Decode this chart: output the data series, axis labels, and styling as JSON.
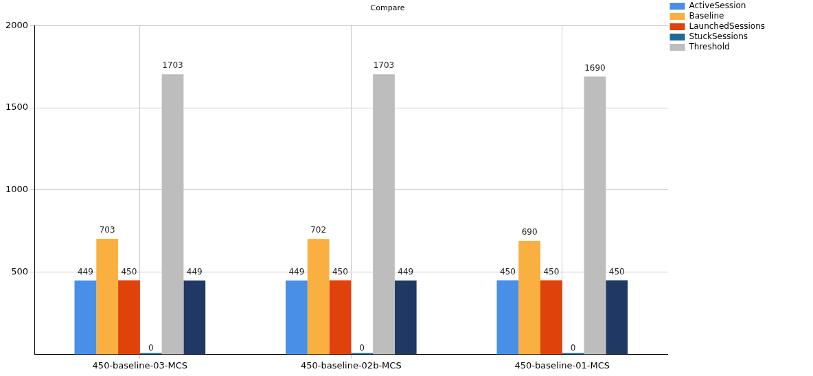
{
  "chart_data": {
    "type": "bar",
    "title": "Compare",
    "categories": [
      "450-baseline-03-MCS",
      "450-baseline-02b-MCS",
      "450-baseline-01-MCS"
    ],
    "series": [
      {
        "name": "ActiveSession",
        "color": "#4a8fe7",
        "values": [
          449,
          449,
          450
        ]
      },
      {
        "name": "Baseline",
        "color": "#f9b041",
        "values": [
          703,
          702,
          690
        ]
      },
      {
        "name": "LaunchedSessions",
        "color": "#e0420c",
        "values": [
          450,
          450,
          450
        ]
      },
      {
        "name": "StuckSessions",
        "color": "#1b6b98",
        "values": [
          0,
          0,
          0
        ]
      },
      {
        "name": "Threshold",
        "color": "#bdbdbd",
        "values": [
          1703,
          1703,
          1690
        ]
      },
      {
        "color": "#1f3864",
        "values": [
          449,
          449,
          450
        ]
      }
    ],
    "ylim": [
      0,
      2000
    ],
    "yticks": [
      500,
      1000,
      1500,
      2000
    ],
    "grid": true,
    "legend": "top right",
    "data_labels": true
  }
}
